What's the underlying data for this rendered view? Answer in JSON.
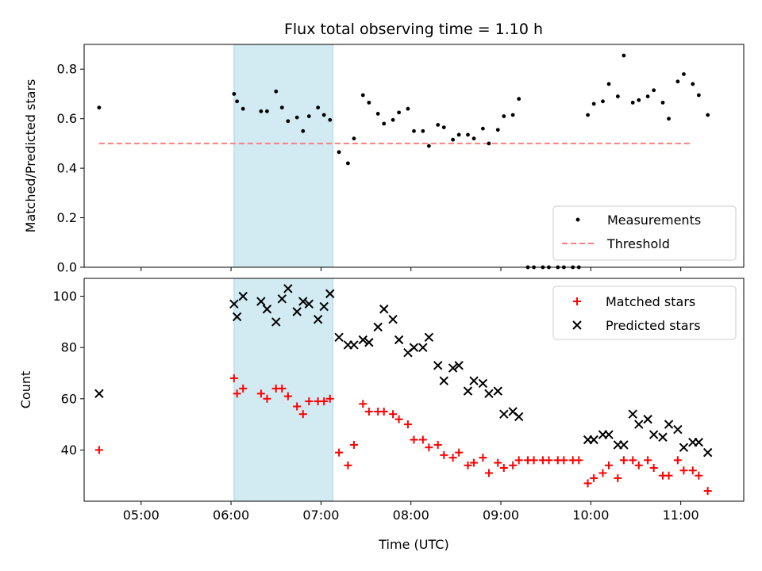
{
  "title": "Flux total observing time = 1.10 h",
  "colors": {
    "measurement": "#000000",
    "threshold": "#ff7f7f",
    "matched": "#ff0000",
    "predicted": "#000000",
    "shade": "#add8e6"
  },
  "chart_data": [
    {
      "type": "scatter",
      "ylabel": "Matched/Predicted stars",
      "xlim": [
        "04:22",
        "11:42"
      ],
      "ylim": [
        0,
        0.9
      ],
      "yticks": [
        0.0,
        0.2,
        0.4,
        0.6,
        0.8
      ],
      "ytick_labels": [
        "0.0",
        "0.2",
        "0.4",
        "0.6",
        "0.8"
      ],
      "shaded_span": [
        "06:02",
        "07:08"
      ],
      "legend": {
        "position": "lower-right",
        "labels": [
          "Measurements",
          "Threshold"
        ]
      },
      "threshold": {
        "name": "Threshold",
        "value": 0.5,
        "x_start": "04:32",
        "x_end": "11:08"
      },
      "series": [
        {
          "name": "Measurements",
          "marker": "dot",
          "points": [
            [
              "04:32",
              0.645
            ],
            [
              "06:02",
              0.7
            ],
            [
              "06:04",
              0.67
            ],
            [
              "06:08",
              0.64
            ],
            [
              "06:20",
              0.63
            ],
            [
              "06:24",
              0.63
            ],
            [
              "06:30",
              0.71
            ],
            [
              "06:34",
              0.645
            ],
            [
              "06:38",
              0.59
            ],
            [
              "06:44",
              0.605
            ],
            [
              "06:48",
              0.55
            ],
            [
              "06:52",
              0.61
            ],
            [
              "06:58",
              0.645
            ],
            [
              "07:02",
              0.615
            ],
            [
              "07:06",
              0.595
            ],
            [
              "07:12",
              0.465
            ],
            [
              "07:18",
              0.42
            ],
            [
              "07:22",
              0.52
            ],
            [
              "07:28",
              0.695
            ],
            [
              "07:32",
              0.665
            ],
            [
              "07:38",
              0.62
            ],
            [
              "07:42",
              0.58
            ],
            [
              "07:48",
              0.595
            ],
            [
              "07:52",
              0.625
            ],
            [
              "07:58",
              0.64
            ],
            [
              "08:02",
              0.55
            ],
            [
              "08:08",
              0.55
            ],
            [
              "08:12",
              0.49
            ],
            [
              "08:18",
              0.575
            ],
            [
              "08:22",
              0.565
            ],
            [
              "08:28",
              0.515
            ],
            [
              "08:32",
              0.535
            ],
            [
              "08:38",
              0.535
            ],
            [
              "08:42",
              0.52
            ],
            [
              "08:48",
              0.56
            ],
            [
              "08:52",
              0.5
            ],
            [
              "08:58",
              0.555
            ],
            [
              "09:02",
              0.61
            ],
            [
              "09:08",
              0.615
            ],
            [
              "09:12",
              0.68
            ],
            [
              "09:18",
              0.0
            ],
            [
              "09:22",
              0.0
            ],
            [
              "09:28",
              0.0
            ],
            [
              "09:32",
              0.0
            ],
            [
              "09:38",
              0.0
            ],
            [
              "09:42",
              0.0
            ],
            [
              "09:48",
              0.0
            ],
            [
              "09:52",
              0.0
            ],
            [
              "09:58",
              0.615
            ],
            [
              "10:02",
              0.66
            ],
            [
              "10:08",
              0.67
            ],
            [
              "10:12",
              0.74
            ],
            [
              "10:18",
              0.69
            ],
            [
              "10:22",
              0.855
            ],
            [
              "10:28",
              0.665
            ],
            [
              "10:32",
              0.675
            ],
            [
              "10:38",
              0.69
            ],
            [
              "10:42",
              0.715
            ],
            [
              "10:48",
              0.665
            ],
            [
              "10:52",
              0.6
            ],
            [
              "10:58",
              0.75
            ],
            [
              "11:02",
              0.78
            ],
            [
              "11:08",
              0.74
            ],
            [
              "11:12",
              0.695
            ],
            [
              "11:18",
              0.615
            ]
          ]
        }
      ]
    },
    {
      "type": "scatter",
      "xlabel": "Time (UTC)",
      "ylabel": "Count",
      "xlim": [
        "04:22",
        "11:42"
      ],
      "ylim": [
        20,
        107
      ],
      "yticks": [
        40,
        60,
        80,
        100
      ],
      "ytick_labels": [
        "40",
        "60",
        "80",
        "100"
      ],
      "xticks": [
        "05:00",
        "06:00",
        "07:00",
        "08:00",
        "09:00",
        "10:00",
        "11:00"
      ],
      "xtick_labels": [
        "05:00",
        "06:00",
        "07:00",
        "08:00",
        "09:00",
        "10:00",
        "11:00"
      ],
      "shaded_span": [
        "06:02",
        "07:08"
      ],
      "legend": {
        "position": "upper-right",
        "labels": [
          "Matched stars",
          "Predicted stars"
        ]
      },
      "series": [
        {
          "name": "Matched stars",
          "marker": "plus",
          "points": [
            [
              "04:32",
              40
            ],
            [
              "06:02",
              68
            ],
            [
              "06:04",
              62
            ],
            [
              "06:08",
              64
            ],
            [
              "06:20",
              62
            ],
            [
              "06:24",
              60
            ],
            [
              "06:30",
              64
            ],
            [
              "06:34",
              64
            ],
            [
              "06:38",
              61
            ],
            [
              "06:44",
              57
            ],
            [
              "06:48",
              54
            ],
            [
              "06:52",
              59
            ],
            [
              "06:58",
              59
            ],
            [
              "07:02",
              59
            ],
            [
              "07:06",
              60
            ],
            [
              "07:12",
              39
            ],
            [
              "07:18",
              34
            ],
            [
              "07:22",
              42
            ],
            [
              "07:28",
              58
            ],
            [
              "07:32",
              55
            ],
            [
              "07:38",
              55
            ],
            [
              "07:42",
              55
            ],
            [
              "07:48",
              54
            ],
            [
              "07:52",
              52
            ],
            [
              "07:58",
              50
            ],
            [
              "08:02",
              44
            ],
            [
              "08:08",
              44
            ],
            [
              "08:12",
              41
            ],
            [
              "08:18",
              42
            ],
            [
              "08:22",
              38
            ],
            [
              "08:28",
              37
            ],
            [
              "08:32",
              39
            ],
            [
              "08:38",
              34
            ],
            [
              "08:42",
              35
            ],
            [
              "08:48",
              37
            ],
            [
              "08:52",
              31
            ],
            [
              "08:58",
              35
            ],
            [
              "09:02",
              33
            ],
            [
              "09:08",
              34
            ],
            [
              "09:12",
              36
            ],
            [
              "09:18",
              36
            ],
            [
              "09:22",
              36
            ],
            [
              "09:28",
              36
            ],
            [
              "09:32",
              36
            ],
            [
              "09:38",
              36
            ],
            [
              "09:42",
              36
            ],
            [
              "09:48",
              36
            ],
            [
              "09:52",
              36
            ],
            [
              "09:58",
              27
            ],
            [
              "10:02",
              29
            ],
            [
              "10:08",
              31
            ],
            [
              "10:12",
              34
            ],
            [
              "10:18",
              29
            ],
            [
              "10:22",
              36
            ],
            [
              "10:28",
              36
            ],
            [
              "10:32",
              34
            ],
            [
              "10:38",
              36
            ],
            [
              "10:42",
              33
            ],
            [
              "10:48",
              30
            ],
            [
              "10:52",
              30
            ],
            [
              "10:58",
              36
            ],
            [
              "11:02",
              32
            ],
            [
              "11:08",
              32
            ],
            [
              "11:12",
              30
            ],
            [
              "11:18",
              24
            ]
          ]
        },
        {
          "name": "Predicted stars",
          "marker": "x",
          "points": [
            [
              "04:32",
              62
            ],
            [
              "06:02",
              97
            ],
            [
              "06:04",
              92
            ],
            [
              "06:08",
              100
            ],
            [
              "06:20",
              98
            ],
            [
              "06:24",
              95
            ],
            [
              "06:30",
              90
            ],
            [
              "06:34",
              99
            ],
            [
              "06:38",
              103
            ],
            [
              "06:44",
              94
            ],
            [
              "06:48",
              98
            ],
            [
              "06:52",
              97
            ],
            [
              "06:58",
              91
            ],
            [
              "07:02",
              96
            ],
            [
              "07:06",
              101
            ],
            [
              "07:12",
              84
            ],
            [
              "07:18",
              81
            ],
            [
              "07:22",
              81
            ],
            [
              "07:28",
              83
            ],
            [
              "07:32",
              82
            ],
            [
              "07:38",
              88
            ],
            [
              "07:42",
              95
            ],
            [
              "07:48",
              91
            ],
            [
              "07:52",
              83
            ],
            [
              "07:58",
              78
            ],
            [
              "08:02",
              80
            ],
            [
              "08:08",
              80
            ],
            [
              "08:12",
              84
            ],
            [
              "08:18",
              73
            ],
            [
              "08:22",
              67
            ],
            [
              "08:28",
              72
            ],
            [
              "08:32",
              73
            ],
            [
              "08:38",
              63
            ],
            [
              "08:42",
              67
            ],
            [
              "08:48",
              66
            ],
            [
              "08:52",
              62
            ],
            [
              "08:58",
              63
            ],
            [
              "09:02",
              54
            ],
            [
              "09:08",
              55
            ],
            [
              "09:12",
              53
            ],
            [
              "09:58",
              44
            ],
            [
              "10:02",
              44
            ],
            [
              "10:08",
              46
            ],
            [
              "10:12",
              46
            ],
            [
              "10:18",
              42
            ],
            [
              "10:22",
              42
            ],
            [
              "10:28",
              54
            ],
            [
              "10:32",
              50
            ],
            [
              "10:38",
              52
            ],
            [
              "10:42",
              46
            ],
            [
              "10:48",
              45
            ],
            [
              "10:52",
              50
            ],
            [
              "10:58",
              48
            ],
            [
              "11:02",
              41
            ],
            [
              "11:08",
              43
            ],
            [
              "11:12",
              43
            ],
            [
              "11:18",
              39
            ]
          ]
        }
      ]
    }
  ]
}
